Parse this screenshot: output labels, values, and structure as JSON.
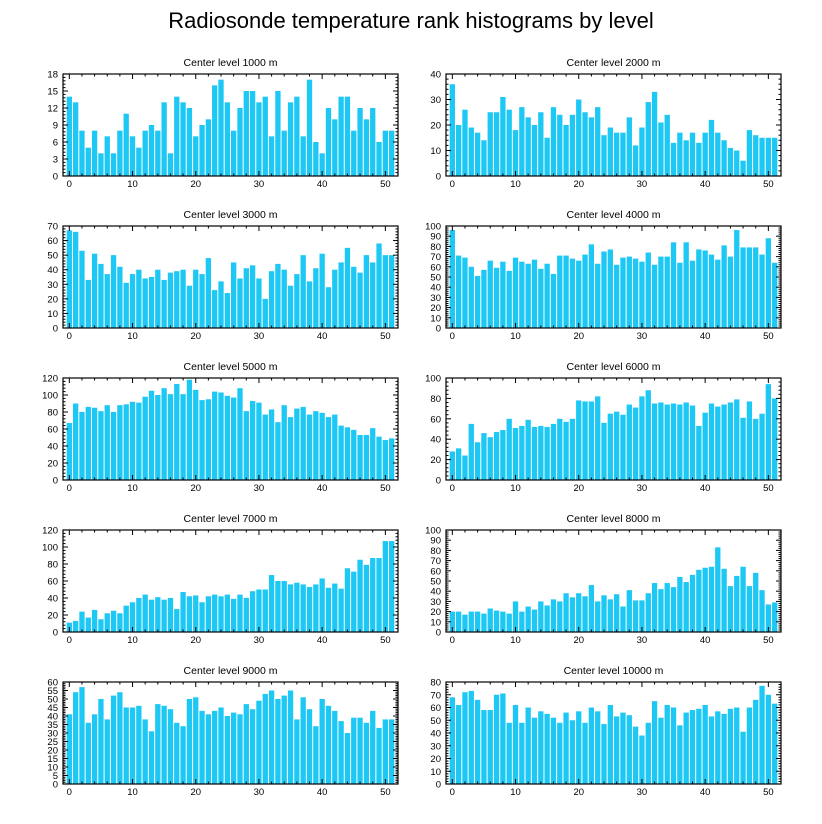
{
  "title": "Radiosonde temperature rank histograms by level",
  "bar_color": "#1ec8f5",
  "chart_data": [
    {
      "type": "bar",
      "title": "Center level 1000 m",
      "x": [
        0,
        1,
        2,
        3,
        4,
        5,
        6,
        7,
        8,
        9,
        10,
        11,
        12,
        13,
        14,
        15,
        16,
        17,
        18,
        19,
        20,
        21,
        22,
        23,
        24,
        25,
        26,
        27,
        28,
        29,
        30,
        31,
        32,
        33,
        34,
        35,
        36,
        37,
        38,
        39,
        40,
        41,
        42,
        43,
        44,
        45,
        46,
        47,
        48,
        49,
        50,
        51
      ],
      "values": [
        14,
        13,
        8,
        5,
        8,
        4,
        7,
        4,
        8,
        11,
        7,
        5,
        8,
        9,
        8,
        13,
        4,
        14,
        13,
        12,
        7,
        9,
        10,
        16,
        17,
        13,
        8,
        12,
        15,
        15,
        13,
        14,
        7,
        15,
        8,
        13,
        14,
        7,
        17,
        6,
        4,
        12,
        10,
        14,
        14,
        8,
        12,
        10,
        12,
        6,
        8,
        8
      ],
      "xlim": [
        -1,
        52
      ],
      "ylim": [
        0,
        18
      ],
      "yticks": [
        0,
        3,
        6,
        9,
        12,
        15,
        18
      ],
      "xticks": [
        0,
        10,
        20,
        30,
        40,
        50
      ]
    },
    {
      "type": "bar",
      "title": "Center level 2000 m",
      "x": [
        0,
        1,
        2,
        3,
        4,
        5,
        6,
        7,
        8,
        9,
        10,
        11,
        12,
        13,
        14,
        15,
        16,
        17,
        18,
        19,
        20,
        21,
        22,
        23,
        24,
        25,
        26,
        27,
        28,
        29,
        30,
        31,
        32,
        33,
        34,
        35,
        36,
        37,
        38,
        39,
        40,
        41,
        42,
        43,
        44,
        45,
        46,
        47,
        48,
        49,
        50,
        51
      ],
      "values": [
        36,
        20,
        26,
        19,
        17,
        14,
        25,
        25,
        31,
        26,
        18,
        27,
        23,
        20,
        25,
        15,
        27,
        24,
        20,
        24,
        30,
        25,
        23,
        27,
        16,
        19,
        17,
        17,
        23,
        12,
        19,
        29,
        33,
        21,
        24,
        13,
        17,
        14,
        17,
        13,
        17,
        22,
        17,
        14,
        11,
        10,
        6,
        18,
        16,
        15,
        15,
        15
      ],
      "xlim": [
        -1,
        52
      ],
      "ylim": [
        0,
        40
      ],
      "yticks": [
        0,
        10,
        20,
        30,
        40
      ],
      "xticks": [
        0,
        10,
        20,
        30,
        40,
        50
      ]
    },
    {
      "type": "bar",
      "title": "Center level 3000 m",
      "x": [
        0,
        1,
        2,
        3,
        4,
        5,
        6,
        7,
        8,
        9,
        10,
        11,
        12,
        13,
        14,
        15,
        16,
        17,
        18,
        19,
        20,
        21,
        22,
        23,
        24,
        25,
        26,
        27,
        28,
        29,
        30,
        31,
        32,
        33,
        34,
        35,
        36,
        37,
        38,
        39,
        40,
        41,
        42,
        43,
        44,
        45,
        46,
        47,
        48,
        49,
        50,
        51
      ],
      "values": [
        67,
        66,
        53,
        33,
        51,
        44,
        37,
        50,
        42,
        31,
        37,
        40,
        34,
        35,
        40,
        33,
        38,
        39,
        40,
        29,
        40,
        37,
        48,
        26,
        32,
        24,
        45,
        34,
        41,
        43,
        34,
        20,
        39,
        44,
        40,
        29,
        37,
        50,
        32,
        41,
        51,
        28,
        40,
        45,
        55,
        42,
        38,
        50,
        45,
        58,
        50,
        50
      ],
      "xlim": [
        -1,
        52
      ],
      "ylim": [
        0,
        70
      ],
      "yticks": [
        0,
        10,
        20,
        30,
        40,
        50,
        60,
        70
      ],
      "xticks": [
        0,
        10,
        20,
        30,
        40,
        50
      ]
    },
    {
      "type": "bar",
      "title": "Center level 4000 m",
      "x": [
        0,
        1,
        2,
        3,
        4,
        5,
        6,
        7,
        8,
        9,
        10,
        11,
        12,
        13,
        14,
        15,
        16,
        17,
        18,
        19,
        20,
        21,
        22,
        23,
        24,
        25,
        26,
        27,
        28,
        29,
        30,
        31,
        32,
        33,
        34,
        35,
        36,
        37,
        38,
        39,
        40,
        41,
        42,
        43,
        44,
        45,
        46,
        47,
        48,
        49,
        50,
        51
      ],
      "values": [
        96,
        71,
        69,
        60,
        51,
        57,
        66,
        59,
        65,
        56,
        69,
        65,
        63,
        67,
        58,
        63,
        53,
        71,
        71,
        68,
        66,
        72,
        82,
        63,
        75,
        77,
        62,
        69,
        70,
        68,
        65,
        74,
        62,
        70,
        70,
        84,
        64,
        84,
        66,
        77,
        76,
        72,
        67,
        81,
        70,
        96,
        79,
        79,
        79,
        72,
        88,
        64
      ],
      "xlim": [
        -1,
        52
      ],
      "ylim": [
        0,
        100
      ],
      "yticks": [
        0,
        10,
        20,
        30,
        40,
        50,
        60,
        70,
        80,
        90,
        100
      ],
      "xticks": [
        0,
        10,
        20,
        30,
        40,
        50
      ]
    },
    {
      "type": "bar",
      "title": "Center level 5000 m",
      "x": [
        0,
        1,
        2,
        3,
        4,
        5,
        6,
        7,
        8,
        9,
        10,
        11,
        12,
        13,
        14,
        15,
        16,
        17,
        18,
        19,
        20,
        21,
        22,
        23,
        24,
        25,
        26,
        27,
        28,
        29,
        30,
        31,
        32,
        33,
        34,
        35,
        36,
        37,
        38,
        39,
        40,
        41,
        42,
        43,
        44,
        45,
        46,
        47,
        48,
        49,
        50,
        51
      ],
      "values": [
        67,
        90,
        80,
        86,
        85,
        81,
        88,
        80,
        88,
        89,
        92,
        91,
        98,
        105,
        100,
        108,
        101,
        113,
        101,
        118,
        106,
        94,
        95,
        104,
        103,
        99,
        97,
        108,
        81,
        93,
        91,
        77,
        83,
        68,
        88,
        74,
        84,
        86,
        77,
        81,
        79,
        74,
        77,
        64,
        62,
        59,
        53,
        53,
        61,
        51,
        47,
        49
      ],
      "xlim": [
        -1,
        52
      ],
      "ylim": [
        0,
        120
      ],
      "yticks": [
        0,
        20,
        40,
        60,
        80,
        100,
        120
      ],
      "xticks": [
        0,
        10,
        20,
        30,
        40,
        50
      ]
    },
    {
      "type": "bar",
      "title": "Center level 6000 m",
      "x": [
        0,
        1,
        2,
        3,
        4,
        5,
        6,
        7,
        8,
        9,
        10,
        11,
        12,
        13,
        14,
        15,
        16,
        17,
        18,
        19,
        20,
        21,
        22,
        23,
        24,
        25,
        26,
        27,
        28,
        29,
        30,
        31,
        32,
        33,
        34,
        35,
        36,
        37,
        38,
        39,
        40,
        41,
        42,
        43,
        44,
        45,
        46,
        47,
        48,
        49,
        50,
        51
      ],
      "values": [
        28,
        31,
        24,
        55,
        37,
        46,
        42,
        47,
        49,
        60,
        51,
        53,
        59,
        52,
        53,
        52,
        55,
        60,
        57,
        60,
        78,
        77,
        77,
        82,
        56,
        65,
        67,
        64,
        74,
        71,
        82,
        88,
        75,
        76,
        74,
        75,
        74,
        76,
        73,
        53,
        66,
        75,
        72,
        74,
        76,
        79,
        61,
        77,
        60,
        65,
        94,
        80
      ],
      "xlim": [
        -1,
        52
      ],
      "ylim": [
        0,
        100
      ],
      "yticks": [
        0,
        20,
        40,
        60,
        80,
        100
      ],
      "xticks": [
        0,
        10,
        20,
        30,
        40,
        50
      ]
    },
    {
      "type": "bar",
      "title": "Center level 7000 m",
      "x": [
        0,
        1,
        2,
        3,
        4,
        5,
        6,
        7,
        8,
        9,
        10,
        11,
        12,
        13,
        14,
        15,
        16,
        17,
        18,
        19,
        20,
        21,
        22,
        23,
        24,
        25,
        26,
        27,
        28,
        29,
        30,
        31,
        32,
        33,
        34,
        35,
        36,
        37,
        38,
        39,
        40,
        41,
        42,
        43,
        44,
        45,
        46,
        47,
        48,
        49,
        50,
        51
      ],
      "values": [
        11,
        13,
        24,
        17,
        26,
        15,
        22,
        25,
        22,
        31,
        35,
        40,
        44,
        38,
        41,
        38,
        40,
        27,
        47,
        42,
        43,
        35,
        42,
        44,
        42,
        44,
        39,
        44,
        40,
        48,
        50,
        50,
        67,
        60,
        60,
        56,
        58,
        56,
        53,
        56,
        63,
        52,
        57,
        51,
        75,
        71,
        85,
        79,
        87,
        87,
        107,
        107
      ],
      "xlim": [
        -1,
        52
      ],
      "ylim": [
        0,
        120
      ],
      "yticks": [
        0,
        20,
        40,
        60,
        80,
        100,
        120
      ],
      "xticks": [
        0,
        10,
        20,
        30,
        40,
        50
      ]
    },
    {
      "type": "bar",
      "title": "Center level 8000 m",
      "x": [
        0,
        1,
        2,
        3,
        4,
        5,
        6,
        7,
        8,
        9,
        10,
        11,
        12,
        13,
        14,
        15,
        16,
        17,
        18,
        19,
        20,
        21,
        22,
        23,
        24,
        25,
        26,
        27,
        28,
        29,
        30,
        31,
        32,
        33,
        34,
        35,
        36,
        37,
        38,
        39,
        40,
        41,
        42,
        43,
        44,
        45,
        46,
        47,
        48,
        49,
        50,
        51
      ],
      "values": [
        20,
        20,
        17,
        20,
        20,
        18,
        23,
        21,
        20,
        18,
        30,
        20,
        25,
        22,
        30,
        26,
        32,
        30,
        38,
        34,
        38,
        35,
        46,
        30,
        36,
        32,
        37,
        25,
        41,
        31,
        31,
        38,
        48,
        42,
        48,
        44,
        54,
        49,
        56,
        61,
        63,
        64,
        83,
        62,
        45,
        55,
        64,
        45,
        58,
        41,
        27,
        29
      ],
      "xlim": [
        -1,
        52
      ],
      "ylim": [
        0,
        100
      ],
      "yticks": [
        0,
        10,
        20,
        30,
        40,
        50,
        60,
        70,
        80,
        90,
        100
      ],
      "xticks": [
        0,
        10,
        20,
        30,
        40,
        50
      ]
    },
    {
      "type": "bar",
      "title": "Center level 9000 m",
      "x": [
        0,
        1,
        2,
        3,
        4,
        5,
        6,
        7,
        8,
        9,
        10,
        11,
        12,
        13,
        14,
        15,
        16,
        17,
        18,
        19,
        20,
        21,
        22,
        23,
        24,
        25,
        26,
        27,
        28,
        29,
        30,
        31,
        32,
        33,
        34,
        35,
        36,
        37,
        38,
        39,
        40,
        41,
        42,
        43,
        44,
        45,
        46,
        47,
        48,
        49,
        50,
        51
      ],
      "values": [
        41,
        54,
        57,
        36,
        41,
        50,
        38,
        52,
        54,
        45,
        45,
        46,
        38,
        31,
        47,
        46,
        44,
        36,
        34,
        50,
        51,
        43,
        41,
        43,
        45,
        40,
        42,
        41,
        47,
        44,
        49,
        53,
        55,
        50,
        52,
        55,
        38,
        51,
        44,
        34,
        50,
        46,
        43,
        37,
        30,
        39,
        39,
        36,
        43,
        33,
        38,
        38
      ],
      "xlim": [
        -1,
        52
      ],
      "ylim": [
        0,
        60
      ],
      "yticks": [
        0,
        5,
        10,
        15,
        20,
        25,
        30,
        35,
        40,
        45,
        50,
        55,
        60
      ],
      "xticks": [
        0,
        10,
        20,
        30,
        40,
        50
      ]
    },
    {
      "type": "bar",
      "title": "Center level 10000 m",
      "x": [
        0,
        1,
        2,
        3,
        4,
        5,
        6,
        7,
        8,
        9,
        10,
        11,
        12,
        13,
        14,
        15,
        16,
        17,
        18,
        19,
        20,
        21,
        22,
        23,
        24,
        25,
        26,
        27,
        28,
        29,
        30,
        31,
        32,
        33,
        34,
        35,
        36,
        37,
        38,
        39,
        40,
        41,
        42,
        43,
        44,
        45,
        46,
        47,
        48,
        49,
        50,
        51
      ],
      "values": [
        68,
        62,
        72,
        73,
        66,
        58,
        58,
        70,
        71,
        48,
        62,
        48,
        60,
        52,
        57,
        55,
        52,
        48,
        56,
        50,
        57,
        48,
        60,
        57,
        47,
        62,
        53,
        56,
        54,
        45,
        38,
        48,
        65,
        52,
        62,
        60,
        46,
        56,
        58,
        59,
        62,
        53,
        57,
        55,
        59,
        60,
        41,
        60,
        66,
        77,
        70,
        63
      ],
      "xlim": [
        -1,
        52
      ],
      "ylim": [
        0,
        80
      ],
      "yticks": [
        0,
        10,
        20,
        30,
        40,
        50,
        60,
        70,
        80
      ],
      "xticks": [
        0,
        10,
        20,
        30,
        40,
        50
      ]
    }
  ]
}
